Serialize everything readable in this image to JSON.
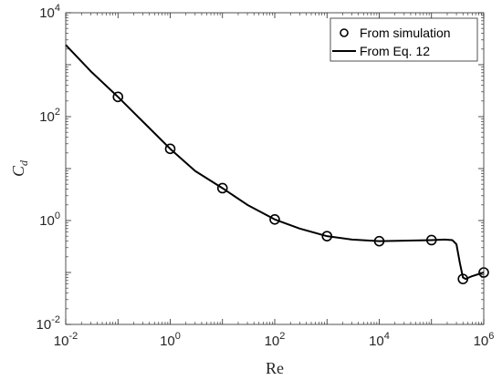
{
  "chart_data": {
    "type": "line",
    "title": "",
    "xlabel": "Re",
    "ylabel_main": "C",
    "ylabel_sub": "d",
    "xscale": "log",
    "yscale": "log",
    "xlim": [
      0.01,
      1000000
    ],
    "ylim": [
      0.01,
      10000
    ],
    "xticks": [
      {
        "base": "10",
        "exp": "-2",
        "value": 0.01
      },
      {
        "base": "10",
        "exp": "0",
        "value": 1
      },
      {
        "base": "10",
        "exp": "2",
        "value": 100
      },
      {
        "base": "10",
        "exp": "4",
        "value": 10000
      },
      {
        "base": "10",
        "exp": "6",
        "value": 1000000
      }
    ],
    "yticks": [
      {
        "base": "10",
        "exp": "-2",
        "value": 0.01
      },
      {
        "base": "10",
        "exp": "0",
        "value": 1
      },
      {
        "base": "10",
        "exp": "2",
        "value": 100
      },
      {
        "base": "10",
        "exp": "4",
        "value": 10000
      }
    ],
    "grid": false,
    "legend_position": "top-right",
    "series": [
      {
        "name": "From simulation",
        "style": "markers-circle",
        "x": [
          0.1,
          1,
          10,
          100,
          1000,
          10000,
          100000,
          400000,
          1000000
        ],
        "y": [
          240,
          24,
          4.2,
          1.05,
          0.5,
          0.4,
          0.42,
          0.075,
          0.1
        ]
      },
      {
        "name": "From Eq. 12",
        "style": "line",
        "x": [
          0.01,
          0.03,
          0.1,
          0.3,
          1,
          3,
          10,
          30,
          100,
          300,
          1000,
          3000,
          10000,
          30000,
          100000,
          180000,
          250000,
          300000,
          350000,
          400000,
          450000,
          600000,
          1000000
        ],
        "y": [
          2400,
          750,
          240,
          80,
          24,
          9,
          4.2,
          2.0,
          1.05,
          0.7,
          0.5,
          0.43,
          0.4,
          0.41,
          0.42,
          0.43,
          0.42,
          0.35,
          0.15,
          0.08,
          0.075,
          0.085,
          0.1
        ]
      }
    ]
  }
}
